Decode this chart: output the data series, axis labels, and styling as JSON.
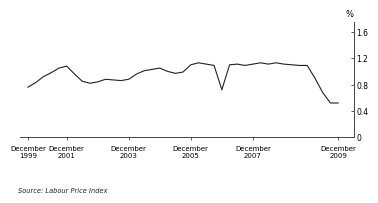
{
  "x_values": [
    1999.75,
    2000.0,
    2000.25,
    2000.5,
    2000.75,
    2001.0,
    2001.25,
    2001.5,
    2001.75,
    2002.0,
    2002.25,
    2002.5,
    2002.75,
    2003.0,
    2003.25,
    2003.5,
    2003.75,
    2004.0,
    2004.25,
    2004.5,
    2004.75,
    2005.0,
    2005.25,
    2005.5,
    2005.75,
    2006.0,
    2006.25,
    2006.5,
    2006.75,
    2007.0,
    2007.25,
    2007.5,
    2007.75,
    2008.0,
    2008.25,
    2008.5,
    2008.75,
    2009.0,
    2009.25,
    2009.5,
    2009.75
  ],
  "y_values": [
    0.76,
    0.83,
    0.92,
    0.98,
    1.05,
    1.08,
    0.96,
    0.85,
    0.82,
    0.84,
    0.88,
    0.87,
    0.86,
    0.88,
    0.96,
    1.01,
    1.03,
    1.05,
    1.0,
    0.97,
    0.99,
    1.1,
    1.13,
    1.11,
    1.09,
    0.72,
    1.1,
    1.11,
    1.09,
    1.11,
    1.13,
    1.11,
    1.13,
    1.11,
    1.1,
    1.09,
    1.09,
    0.9,
    0.68,
    0.52,
    0.52
  ],
  "xtick_positions": [
    1999.75,
    2001.0,
    2003.0,
    2005.0,
    2007.0,
    2009.75
  ],
  "xtick_labels": [
    "December\n1999",
    "December\n2001",
    "December\n2003",
    "December\n2005",
    "December\n2007",
    "December\n2009"
  ],
  "ytick_positions": [
    0,
    0.4,
    0.8,
    1.2,
    1.6
  ],
  "ytick_labels": [
    "0",
    "0.4",
    "0.8",
    "1.2",
    "1.6"
  ],
  "ylabel": "%",
  "ylim": [
    0,
    1.75
  ],
  "xlim": [
    1999.5,
    2010.25
  ],
  "source_text": "Source: Labour Price Index",
  "line_color": "#222222",
  "line_width": 0.8,
  "background_color": "#ffffff"
}
